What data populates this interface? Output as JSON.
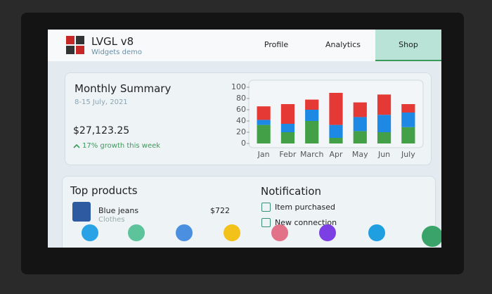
{
  "header": {
    "title": "LVGL v8",
    "subtitle": "Widgets demo"
  },
  "tabs": [
    "Profile",
    "Analytics",
    "Shop"
  ],
  "summary": {
    "title": "Monthly Summary",
    "date": "8-15 July, 2021",
    "amount": "$27,123.25",
    "growth": "17% growth this week"
  },
  "chart_data": {
    "type": "bar",
    "stacked": true,
    "categories": [
      "Jan",
      "Febr",
      "March",
      "Apr",
      "May",
      "Jun",
      "July"
    ],
    "series": [
      {
        "color": "#43a047",
        "values": [
          33,
          20,
          40,
          10,
          22,
          20,
          29
        ]
      },
      {
        "color": "#1e88e5",
        "values": [
          9,
          15,
          20,
          23,
          25,
          31,
          26
        ]
      },
      {
        "color": "#e53935",
        "values": [
          24,
          35,
          18,
          57,
          26,
          36,
          15
        ]
      }
    ],
    "ylim": [
      0,
      100
    ],
    "yticks": [
      0,
      20,
      40,
      60,
      80,
      100
    ],
    "grid": false
  },
  "products": {
    "title": "Top products",
    "items": [
      {
        "name": "Blue jeans",
        "category": "Clothes",
        "price": "$722"
      }
    ]
  },
  "notification": {
    "title": "Notification",
    "items": [
      "Item purchased",
      "New connection"
    ]
  }
}
